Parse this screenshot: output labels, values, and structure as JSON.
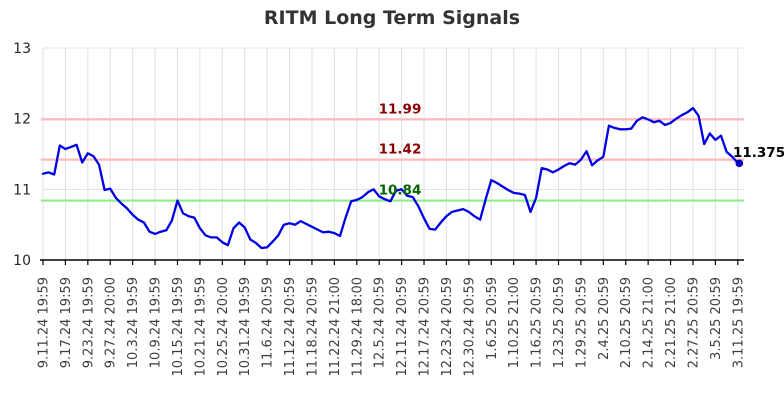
{
  "title": "RITM Long Term Signals",
  "chart_data": {
    "type": "line",
    "title": "RITM Long Term Signals",
    "xlabel": "",
    "ylabel": "",
    "ylim": [
      10,
      13
    ],
    "y_ticks": [
      13,
      12,
      11,
      10
    ],
    "grid": true,
    "x_tick_labels": [
      "9.11.24 19:59",
      "9.17.24 19:59",
      "9.23.24 19:59",
      "9.27.24 20:00",
      "10.3.24 19:59",
      "10.9.24 19:59",
      "10.15.24 19:59",
      "10.21.24 19:59",
      "10.25.24 20:00",
      "10.31.24 19:59",
      "11.6.24 20:59",
      "11.12.24 20:59",
      "11.18.24 20:59",
      "11.22.24 21:00",
      "11.29.24 18:00",
      "12.5.24 20:59",
      "12.11.24 20:59",
      "12.17.24 20:59",
      "12.23.24 20:59",
      "12.30.24 20:59",
      "1.6.25 20:59",
      "1.10.25 21:00",
      "1.16.25 20:59",
      "1.23.25 20:59",
      "1.29.25 20:59",
      "2.4.25 20:59",
      "2.10.25 20:59",
      "2.14.25 21:00",
      "2.21.25 21:00",
      "2.27.25 20:59",
      "3.5.25 20:59",
      "3.11.25 19:59"
    ],
    "points_per_label": 4,
    "series": [
      {
        "name": "price",
        "color": "#0000e6",
        "values": [
          11.22,
          11.24,
          11.21,
          11.62,
          11.57,
          11.6,
          11.63,
          11.38,
          11.51,
          11.47,
          11.35,
          10.99,
          11.01,
          10.88,
          10.8,
          10.73,
          10.64,
          10.57,
          10.53,
          10.4,
          10.37,
          10.4,
          10.42,
          10.56,
          10.84,
          10.66,
          10.62,
          10.6,
          10.45,
          10.35,
          10.32,
          10.32,
          10.25,
          10.21,
          10.45,
          10.53,
          10.46,
          10.29,
          10.24,
          10.17,
          10.18,
          10.26,
          10.35,
          10.5,
          10.52,
          10.5,
          10.55,
          10.51,
          10.47,
          10.43,
          10.39,
          10.4,
          10.38,
          10.34,
          10.6,
          10.83,
          10.85,
          10.89,
          10.96,
          11.0,
          10.9,
          10.86,
          10.83,
          10.98,
          11.0,
          10.91,
          10.89,
          10.76,
          10.59,
          10.44,
          10.43,
          10.53,
          10.62,
          10.68,
          10.7,
          10.72,
          10.68,
          10.62,
          10.57,
          10.86,
          11.13,
          11.09,
          11.04,
          10.99,
          10.95,
          10.94,
          10.92,
          10.68,
          10.88,
          11.3,
          11.28,
          11.24,
          11.28,
          11.33,
          11.37,
          11.35,
          11.42,
          11.54,
          11.34,
          11.41,
          11.46,
          11.9,
          11.87,
          11.85,
          11.85,
          11.86,
          11.97,
          12.02,
          11.99,
          11.95,
          11.97,
          11.91,
          11.94,
          12.0,
          12.05,
          12.09,
          12.15,
          12.04,
          11.64,
          11.79,
          11.7,
          11.76,
          11.53,
          11.46,
          11.375
        ]
      }
    ],
    "signal_lines": [
      {
        "label": "11.99",
        "value": 11.99,
        "line_color": "#ffb9b9",
        "label_color": "#8b0000"
      },
      {
        "label": "11.42",
        "value": 11.42,
        "line_color": "#ffb9b9",
        "label_color": "#8b0000"
      },
      {
        "label": "10.84",
        "value": 10.84,
        "line_color": "#90ee90",
        "label_color": "#006400"
      }
    ],
    "last_value": 11.375,
    "last_value_label": "11.375",
    "marker_color": "#0000bb"
  },
  "colors": {
    "background": "#ffffff",
    "grid": "#e0e0e0",
    "axis": "#000000",
    "title": "#333333",
    "tick_label": "#3d3d3d"
  }
}
